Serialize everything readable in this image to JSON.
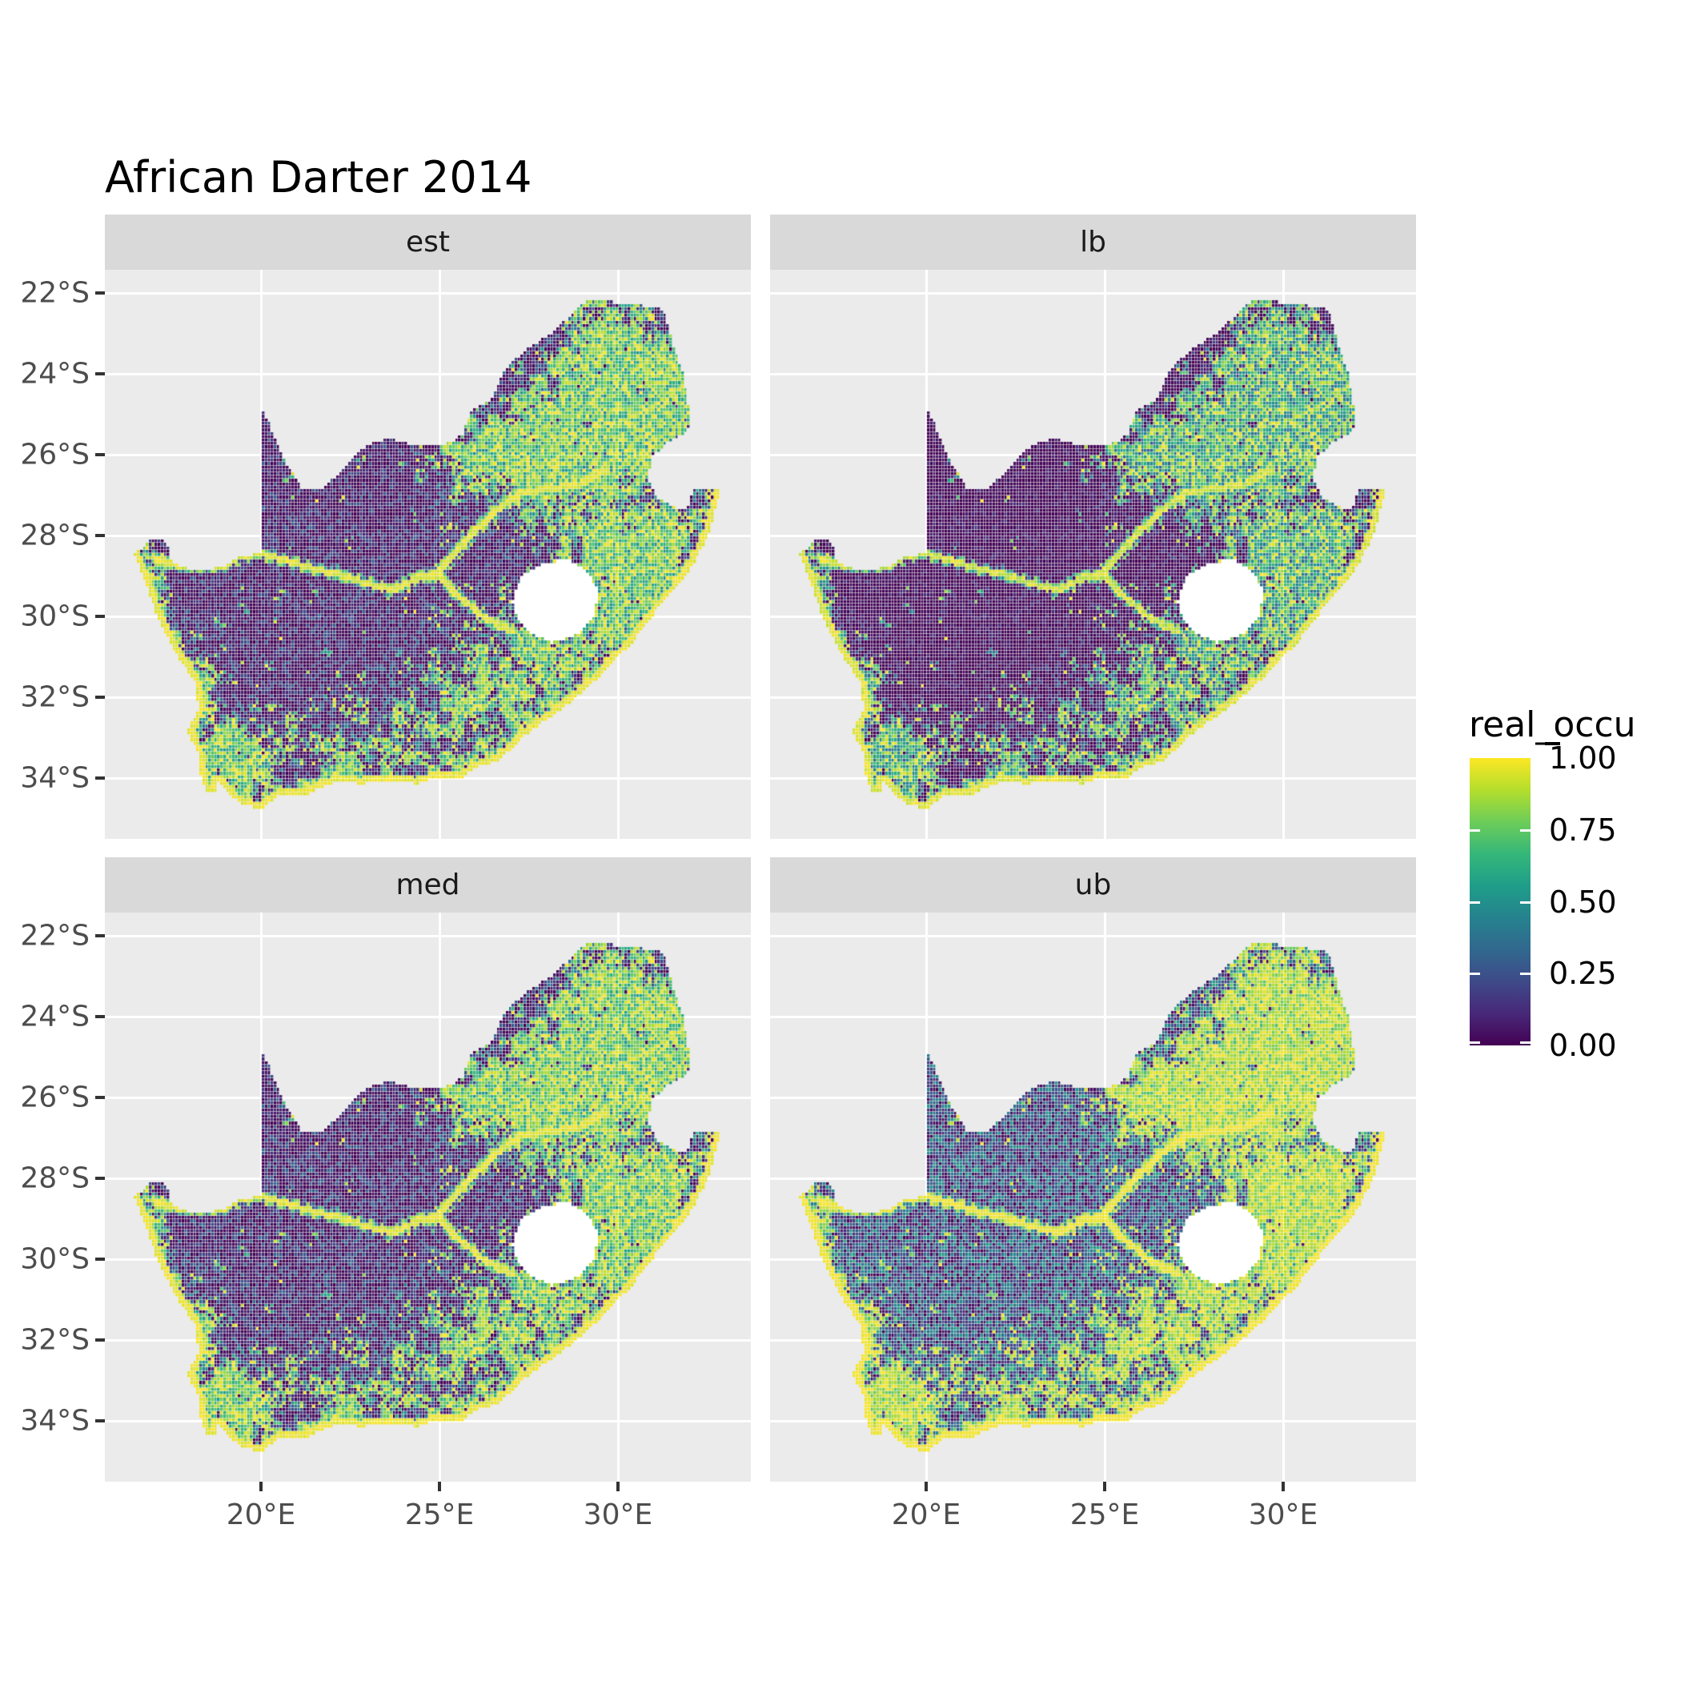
{
  "title": "African Darter 2014",
  "facets": [
    {
      "label": "est"
    },
    {
      "label": "lb"
    },
    {
      "label": "med"
    },
    {
      "label": "ub"
    }
  ],
  "y_axis": {
    "ticks": [
      "22°S",
      "24°S",
      "26°S",
      "28°S",
      "30°S",
      "32°S",
      "34°S"
    ]
  },
  "x_axis": {
    "ticks": [
      "20°E",
      "25°E",
      "30°E"
    ]
  },
  "legend": {
    "title": "real_occu",
    "labels": [
      "1.00",
      "0.75",
      "0.50",
      "0.25",
      "0.00"
    ]
  },
  "colors": {
    "panel_bg": "#EBEBEB",
    "strip_bg": "#D9D9D9",
    "gridline": "#FFFFFF",
    "axis_text": "#4D4D4D",
    "tick_mark": "#333333",
    "strip_text": "#1A1A1A",
    "title_text": "#000000",
    "na_hole": "#FFFFFF",
    "viridis_stops": [
      [
        0.0,
        "#440154"
      ],
      [
        0.111,
        "#482878"
      ],
      [
        0.222,
        "#3E4A89"
      ],
      [
        0.333,
        "#31688E"
      ],
      [
        0.444,
        "#26828E"
      ],
      [
        0.556,
        "#1F9E89"
      ],
      [
        0.667,
        "#35B779"
      ],
      [
        0.778,
        "#6DCD59"
      ],
      [
        0.889,
        "#B4DE2C"
      ],
      [
        1.0,
        "#FDE725"
      ]
    ]
  },
  "chart_data": {
    "type": "heatmap",
    "subtype": "faceted geographic raster (ggplot2-style)",
    "title": "African Darter 2014",
    "facets": [
      "est",
      "lb",
      "med",
      "ub"
    ],
    "facet_layout": "2x2 grid; est top-left, lb top-right, med bottom-left, ub bottom-right",
    "geography": "South Africa; Lesotho appears as a white hole, eSwatini as a notch on the eastern border",
    "x": {
      "tick_labels": [
        "20°E",
        "25°E",
        "30°E"
      ],
      "ticks_deg_east": [
        20,
        25,
        30
      ],
      "range_deg_east": [
        15.6,
        33.7
      ]
    },
    "y": {
      "tick_labels": [
        "22°S",
        "24°S",
        "26°S",
        "28°S",
        "30°S",
        "32°S",
        "34°S"
      ],
      "ticks_deg_south": [
        22,
        24,
        26,
        28,
        30,
        32,
        34
      ],
      "range_deg_south": [
        21.5,
        35.5
      ]
    },
    "cell_size_deg": 0.083,
    "legend": {
      "title": "real_occu",
      "range": [
        0,
        1
      ],
      "breaks": [
        1.0,
        0.75,
        0.5,
        0.25,
        0.0
      ],
      "palette": "viridis",
      "position": "right"
    },
    "grid": "major white gridlines only on grey panel background",
    "pattern": "Occupancy near 0 (dark purple) over the Karoo and Kalahari interior; near 1 (yellow) along the entire coastline, along the Orange and Vaal rivers, and around the Gauteng / Mpumalanga escarpment and KwaZulu-Natal highlands; lb facet is darkest, ub facet is brightest, est and med are similar and intermediate."
  }
}
